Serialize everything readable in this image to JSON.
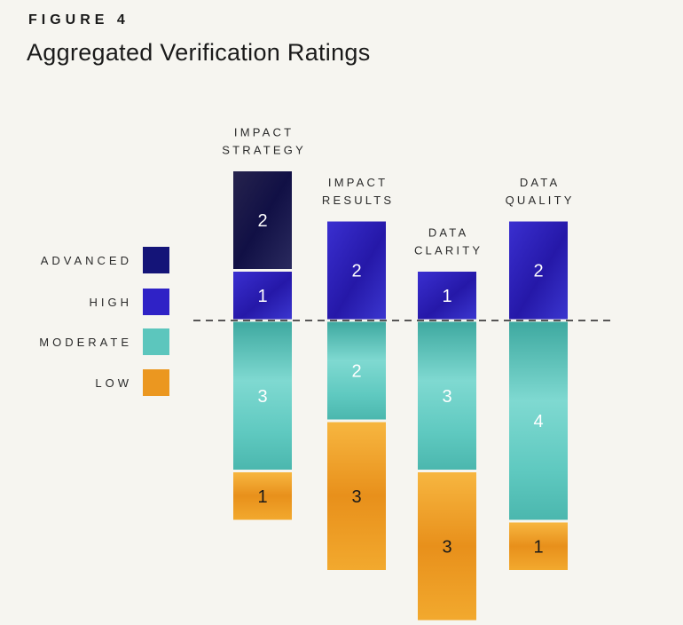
{
  "figure": {
    "label": "FIGURE 4",
    "title": "Aggregated Verification Ratings"
  },
  "chart_data": {
    "type": "bar",
    "stacked": true,
    "categories": [
      [
        "IMPACT",
        "STRATEGY"
      ],
      [
        "IMPACT",
        "RESULTS"
      ],
      [
        "DATA",
        "CLARITY"
      ],
      [
        "DATA",
        "QUALITY"
      ]
    ],
    "series": [
      {
        "name": "ADVANCED",
        "values": [
          2,
          0,
          0,
          0
        ],
        "color": "#141478",
        "text_color": "#ffffff"
      },
      {
        "name": "HIGH",
        "values": [
          1,
          2,
          1,
          2
        ],
        "color": "#2f22c6",
        "text_color": "#ffffff"
      },
      {
        "name": "MODERATE",
        "values": [
          3,
          2,
          3,
          4
        ],
        "color": "#5cc6bd",
        "text_color": "#ffffff"
      },
      {
        "name": "LOW",
        "values": [
          1,
          3,
          3,
          1
        ],
        "color": "#eb9720",
        "text_color": "#1a1a1a"
      }
    ],
    "baseline": "dashed line separates HIGH from MODERATE",
    "legend_position": "left"
  }
}
